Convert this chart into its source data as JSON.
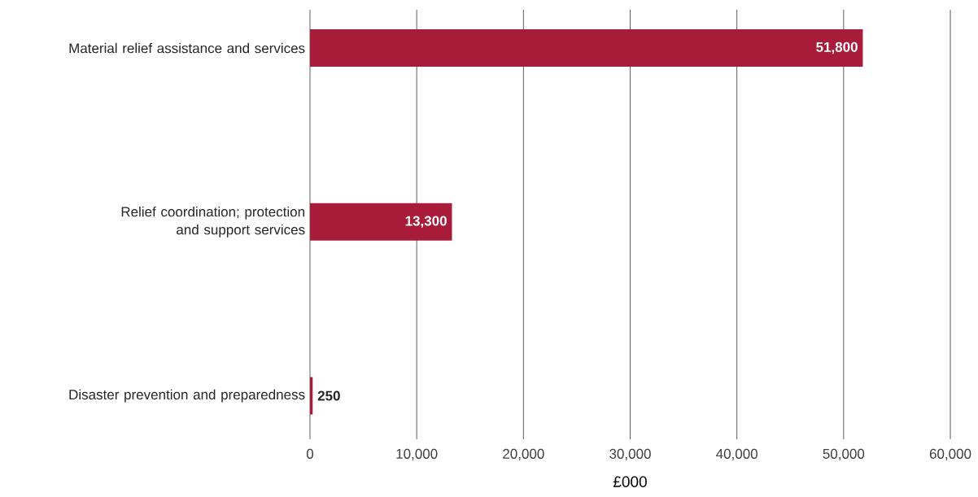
{
  "chart_data": {
    "type": "bar",
    "orientation": "horizontal",
    "xlabel": "£000",
    "categories": [
      "Material relief assistance and services",
      "Relief coordination; protection and support services",
      "Disaster prevention and preparedness"
    ],
    "values": [
      51800,
      13300,
      250
    ],
    "value_labels": [
      "51,800",
      "13,300",
      "250"
    ],
    "color": "#a81c3a",
    "xlim": [
      0,
      60000
    ],
    "xticks": [
      {
        "value": 0,
        "label": "0"
      },
      {
        "value": 10000,
        "label": "10,000"
      },
      {
        "value": 20000,
        "label": "20,000"
      },
      {
        "value": 30000,
        "label": "30,000"
      },
      {
        "value": 40000,
        "label": "40,000"
      },
      {
        "value": 50000,
        "label": "50,000"
      },
      {
        "value": 60000,
        "label": "60,000"
      }
    ],
    "grid": "x"
  }
}
